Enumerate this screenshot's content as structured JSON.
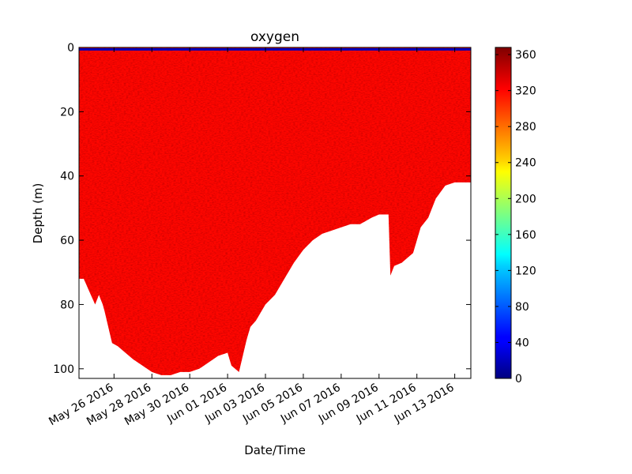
{
  "chart_data": {
    "type": "scatter",
    "title": "oxygen",
    "xlabel": "Date/Time",
    "ylabel": "Depth (m)",
    "x_ticks": [
      "May 26 2016",
      "May 28 2016",
      "May 30 2016",
      "Jun 01 2016",
      "Jun 03 2016",
      "Jun 05 2016",
      "Jun 07 2016",
      "Jun 09 2016",
      "Jun 11 2016",
      "Jun 13 2016"
    ],
    "x_tick_days": [
      1.0,
      3.0,
      5.0,
      7.0,
      9.0,
      11.0,
      13.0,
      15.0,
      17.0,
      19.0
    ],
    "xlim_days": [
      -0.85,
      19.85
    ],
    "y_ticks": [
      0,
      20,
      40,
      60,
      80,
      100
    ],
    "ylim": [
      103,
      0
    ],
    "colorbar": {
      "colormap": "jet",
      "ticks": [
        0,
        40,
        80,
        120,
        160,
        200,
        240,
        280,
        320,
        360
      ],
      "range": [
        0,
        368
      ]
    },
    "typical_value": 320,
    "surface_value": 20,
    "max_depth_profile": {
      "days": [
        -0.85,
        -0.6,
        -0.3,
        0.0,
        0.2,
        0.4,
        0.5,
        0.9,
        1.2,
        1.6,
        2.0,
        2.5,
        3.0,
        3.5,
        4.0,
        4.5,
        5.0,
        5.5,
        6.0,
        6.5,
        7.0,
        7.2,
        7.6,
        8.0,
        8.2,
        8.5,
        9.0,
        9.5,
        10.0,
        10.5,
        11.0,
        11.5,
        12.0,
        12.5,
        13.0,
        13.5,
        14.0,
        14.3,
        14.6,
        15.0,
        15.5,
        15.6,
        15.8,
        16.2,
        16.8,
        17.2,
        17.6,
        18.0,
        18.5,
        19.0,
        19.5,
        19.85
      ],
      "depths": [
        72,
        72,
        76,
        80,
        77,
        80,
        82,
        92,
        93,
        95,
        97,
        99,
        101,
        102,
        102,
        101,
        101,
        100,
        98,
        96,
        95,
        99,
        101,
        91,
        87,
        85,
        80,
        77,
        72,
        67,
        63,
        60,
        58,
        57,
        56,
        55,
        55,
        54,
        53,
        52,
        52,
        71,
        68,
        67,
        64,
        56,
        53,
        47,
        43,
        42,
        42,
        42
      ]
    }
  }
}
